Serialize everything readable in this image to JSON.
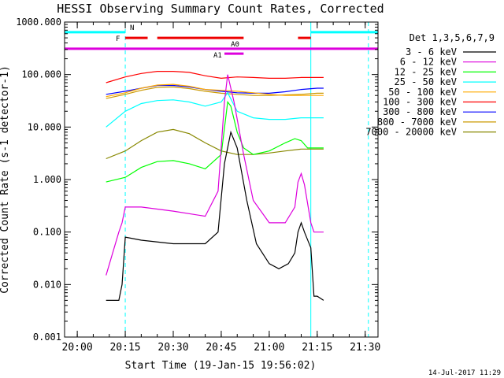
{
  "chart_data": {
    "type": "line",
    "title": "HESSI Observing Summary Count Rates, Corrected",
    "xlabel": "Start Time (19-Jan-15 19:56:02)",
    "ylabel": "Corrected Count Rate (s-1 detector-1)",
    "x_tick_labels": [
      "20:00",
      "20:15",
      "20:30",
      "20:45",
      "21:00",
      "21:15",
      "21:30"
    ],
    "y_tick_labels": [
      "0.001",
      "0.010",
      "0.100",
      "1.000",
      "10.000",
      "100.000",
      "1000.000"
    ],
    "y_scale": "log",
    "ylim": [
      0.001,
      1000
    ],
    "xlim": [
      "19:56:02",
      "21:34:00"
    ],
    "legend_title": "Det 1,3,5,6,7,9",
    "legend_position": "right",
    "series": [
      {
        "name": "3 - 6 keV",
        "color": "#000000",
        "x": [
          "20:09",
          "20:13",
          "20:14",
          "20:15",
          "20:20",
          "20:30",
          "20:40",
          "20:44",
          "20:46",
          "20:48",
          "20:50",
          "20:53",
          "20:56",
          "21:00",
          "21:03",
          "21:06",
          "21:08",
          "21:09",
          "21:10",
          "21:11",
          "21:13",
          "21:14",
          "21:15",
          "21:17"
        ],
        "y": [
          0.005,
          0.005,
          0.01,
          0.08,
          0.07,
          0.06,
          0.06,
          0.1,
          2,
          8,
          4,
          0.4,
          0.06,
          0.025,
          0.02,
          0.025,
          0.04,
          0.1,
          0.15,
          0.1,
          0.05,
          0.006,
          0.006,
          0.005
        ]
      },
      {
        "name": "6 - 12 keV",
        "color": "#dd00dd",
        "x": [
          "20:09",
          "20:13",
          "20:14",
          "20:15",
          "20:20",
          "20:30",
          "20:40",
          "20:44",
          "20:46",
          "20:47",
          "20:49",
          "20:52",
          "20:55",
          "21:00",
          "21:05",
          "21:08",
          "21:09",
          "21:10",
          "21:11",
          "21:13",
          "21:14",
          "21:17"
        ],
        "y": [
          0.015,
          0.1,
          0.15,
          0.3,
          0.3,
          0.25,
          0.2,
          0.6,
          30,
          100,
          30,
          3,
          0.4,
          0.15,
          0.15,
          0.3,
          0.9,
          1.3,
          0.8,
          0.15,
          0.1,
          0.1
        ]
      },
      {
        "name": "12 - 25 keV",
        "color": "#00ff00",
        "x": [
          "20:09",
          "20:15",
          "20:20",
          "20:25",
          "20:30",
          "20:35",
          "20:40",
          "20:45",
          "20:47",
          "20:48",
          "20:50",
          "20:52",
          "20:55",
          "21:00",
          "21:05",
          "21:08",
          "21:10",
          "21:12",
          "21:15",
          "21:17"
        ],
        "y": [
          0.9,
          1.1,
          1.7,
          2.2,
          2.3,
          2,
          1.6,
          3,
          30,
          25,
          8,
          4,
          3,
          3.5,
          5,
          6,
          5.5,
          4,
          4,
          4
        ]
      },
      {
        "name": "25 - 50 keV",
        "color": "#00ffff",
        "x": [
          "20:09",
          "20:15",
          "20:20",
          "20:25",
          "20:30",
          "20:35",
          "20:40",
          "20:45",
          "20:47",
          "20:50",
          "20:55",
          "21:00",
          "21:05",
          "21:10",
          "21:15",
          "21:17"
        ],
        "y": [
          10,
          20,
          28,
          32,
          33,
          30,
          25,
          30,
          45,
          20,
          15,
          14,
          14,
          15,
          15,
          15
        ]
      },
      {
        "name": "50 - 100 keV",
        "color": "#ffaa00",
        "x": [
          "20:09",
          "20:15",
          "20:20",
          "20:25",
          "20:30",
          "20:35",
          "20:40",
          "20:45",
          "20:50",
          "20:55",
          "21:00",
          "21:05",
          "21:10",
          "21:15",
          "21:17"
        ],
        "y": [
          38,
          45,
          55,
          63,
          65,
          60,
          52,
          50,
          48,
          45,
          42,
          40,
          40,
          40,
          40
        ]
      },
      {
        "name": "100 - 300 keV",
        "color": "#ff0000",
        "x": [
          "20:09",
          "20:15",
          "20:20",
          "20:25",
          "20:30",
          "20:35",
          "20:40",
          "20:45",
          "20:50",
          "20:55",
          "21:00",
          "21:05",
          "21:10",
          "21:15",
          "21:17"
        ],
        "y": [
          70,
          90,
          105,
          115,
          115,
          110,
          95,
          85,
          90,
          88,
          85,
          85,
          88,
          88,
          88
        ]
      },
      {
        "name": "300 - 800 keV",
        "color": "#0000ff",
        "x": [
          "20:09",
          "20:15",
          "20:20",
          "20:25",
          "20:30",
          "20:35",
          "20:40",
          "20:45",
          "20:50",
          "20:55",
          "21:00",
          "21:05",
          "21:10",
          "21:15",
          "21:17"
        ],
        "y": [
          42,
          48,
          55,
          62,
          62,
          58,
          52,
          48,
          45,
          44,
          44,
          47,
          52,
          55,
          55
        ]
      },
      {
        "name": "800 - 7000 keV",
        "color": "#cc9900",
        "x": [
          "20:09",
          "20:15",
          "20:20",
          "20:25",
          "20:30",
          "20:35",
          "20:40",
          "20:45",
          "20:50",
          "20:55",
          "21:00",
          "21:05",
          "21:10",
          "21:15",
          "21:17"
        ],
        "y": [
          35,
          42,
          50,
          57,
          58,
          54,
          48,
          44,
          42,
          40,
          40,
          41,
          42,
          44,
          44
        ]
      },
      {
        "name": "7000 - 20000 keV",
        "color": "#888800",
        "x": [
          "20:09",
          "20:15",
          "20:20",
          "20:25",
          "20:30",
          "20:35",
          "20:40",
          "20:45",
          "20:50",
          "20:55",
          "21:00",
          "21:05",
          "21:10",
          "21:15",
          "21:17"
        ],
        "y": [
          2.5,
          3.5,
          5.5,
          8,
          9,
          7.5,
          5,
          3.5,
          3,
          3,
          3.2,
          3.5,
          3.8,
          3.8,
          3.8
        ]
      }
    ],
    "vertical_lines": [
      {
        "x": "20:15",
        "color": "#00ffff",
        "style": "dashed"
      },
      {
        "x": "21:13",
        "color": "#00ffff",
        "style": "solid"
      },
      {
        "x": "21:31",
        "color": "#00ffff",
        "style": "dashed"
      }
    ],
    "flag_bars": [
      {
        "label": "N",
        "color": "#00ffff",
        "y": 640,
        "segments": [
          [
            "19:56",
            "20:15"
          ],
          [
            "21:13",
            "21:34"
          ]
        ]
      },
      {
        "label": "F",
        "color": "#ee0000",
        "y": 500,
        "segments": [
          [
            "20:15",
            "20:22"
          ],
          [
            "20:25",
            "20:52"
          ],
          [
            "21:09",
            "21:13"
          ]
        ]
      },
      {
        "label": "A0",
        "color": "#dd00dd",
        "y": 310,
        "segments": [
          [
            "19:56",
            "21:34"
          ]
        ]
      },
      {
        "label": "A1",
        "color": "#dd00dd",
        "y": 250,
        "segments": [
          [
            "20:46",
            "20:52"
          ]
        ]
      }
    ]
  },
  "footer": {
    "timestamp": "14-Jul-2017 11:29"
  },
  "colors": {
    "axis": "#000000",
    "background": "#ffffff"
  }
}
